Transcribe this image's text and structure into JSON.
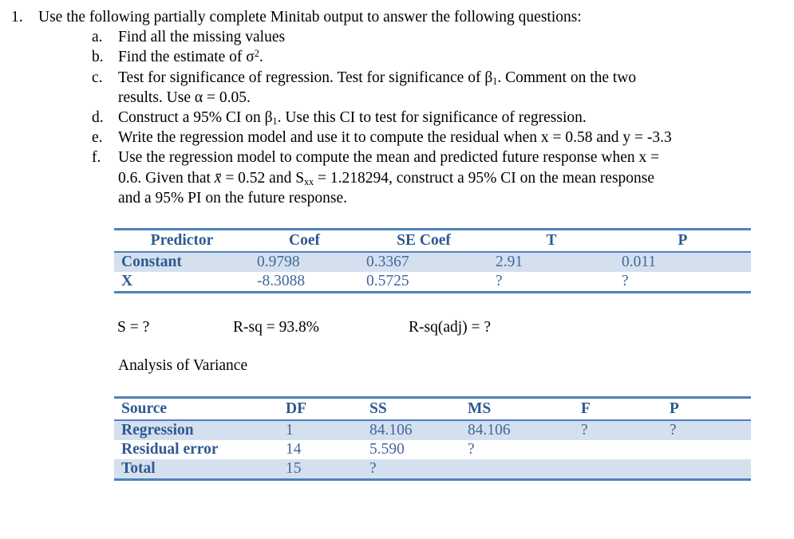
{
  "question": {
    "number": "1.",
    "intro": "Use the following partially complete Minitab output to answer the following questions:",
    "items": [
      {
        "label": "a.",
        "lines": [
          "Find all the missing values"
        ]
      },
      {
        "label": "b.",
        "lines": [
          "Find the estimate of σ<sup>2</sup>."
        ]
      },
      {
        "label": "c.",
        "lines": [
          "Test for significance of regression. Test for significance of β<sub>1</sub>. Comment on the two",
          "results. Use α = 0.05."
        ]
      },
      {
        "label": "d.",
        "lines": [
          "Construct a 95% CI on β<sub>1</sub>. Use this CI to test for significance of regression."
        ]
      },
      {
        "label": "e.",
        "lines": [
          "Write the regression model and use it to compute the residual when x = 0.58 and y = -3.3"
        ]
      },
      {
        "label": "f.",
        "lines": [
          "Use the regression model to compute the mean and predicted future response when x =",
          "0.6. Given that <i>x̄</i> = 0.52 and S<sub>xx</sub> = 1.218294, construct a 95% CI on the mean response",
          "and a 95% PI on the future response."
        ]
      }
    ]
  },
  "coef_table": {
    "headers": [
      "Predictor",
      "Coef",
      "SE Coef",
      "T",
      "P"
    ],
    "rows": [
      {
        "cells": [
          "Constant",
          "0.9798",
          "0.3367",
          "2.91",
          "0.011"
        ]
      },
      {
        "cells": [
          "X",
          "-8.3088",
          "0.5725",
          "?",
          "?"
        ]
      }
    ]
  },
  "model_summary": {
    "s": "S = ?",
    "rsq": "R-sq = 93.8%",
    "rsq_adj": "R-sq(adj) = ?"
  },
  "anova": {
    "title": "Analysis of Variance",
    "headers": [
      "Source",
      "DF",
      "SS",
      "MS",
      "F",
      "P"
    ],
    "rows": [
      {
        "cells": [
          "Regression",
          "1",
          "84.106",
          "84.106",
          "?",
          "?"
        ]
      },
      {
        "cells": [
          "Residual error",
          "14",
          "5.590",
          "?",
          "",
          ""
        ]
      },
      {
        "cells": [
          "Total",
          "15",
          "?",
          "",
          "",
          ""
        ]
      }
    ]
  },
  "colors": {
    "table_border": "#4E81BD",
    "row_shading": "#D5E0EF",
    "header_text": "#2D5A92",
    "data_text": "#41679D",
    "body_text": "#000000"
  }
}
